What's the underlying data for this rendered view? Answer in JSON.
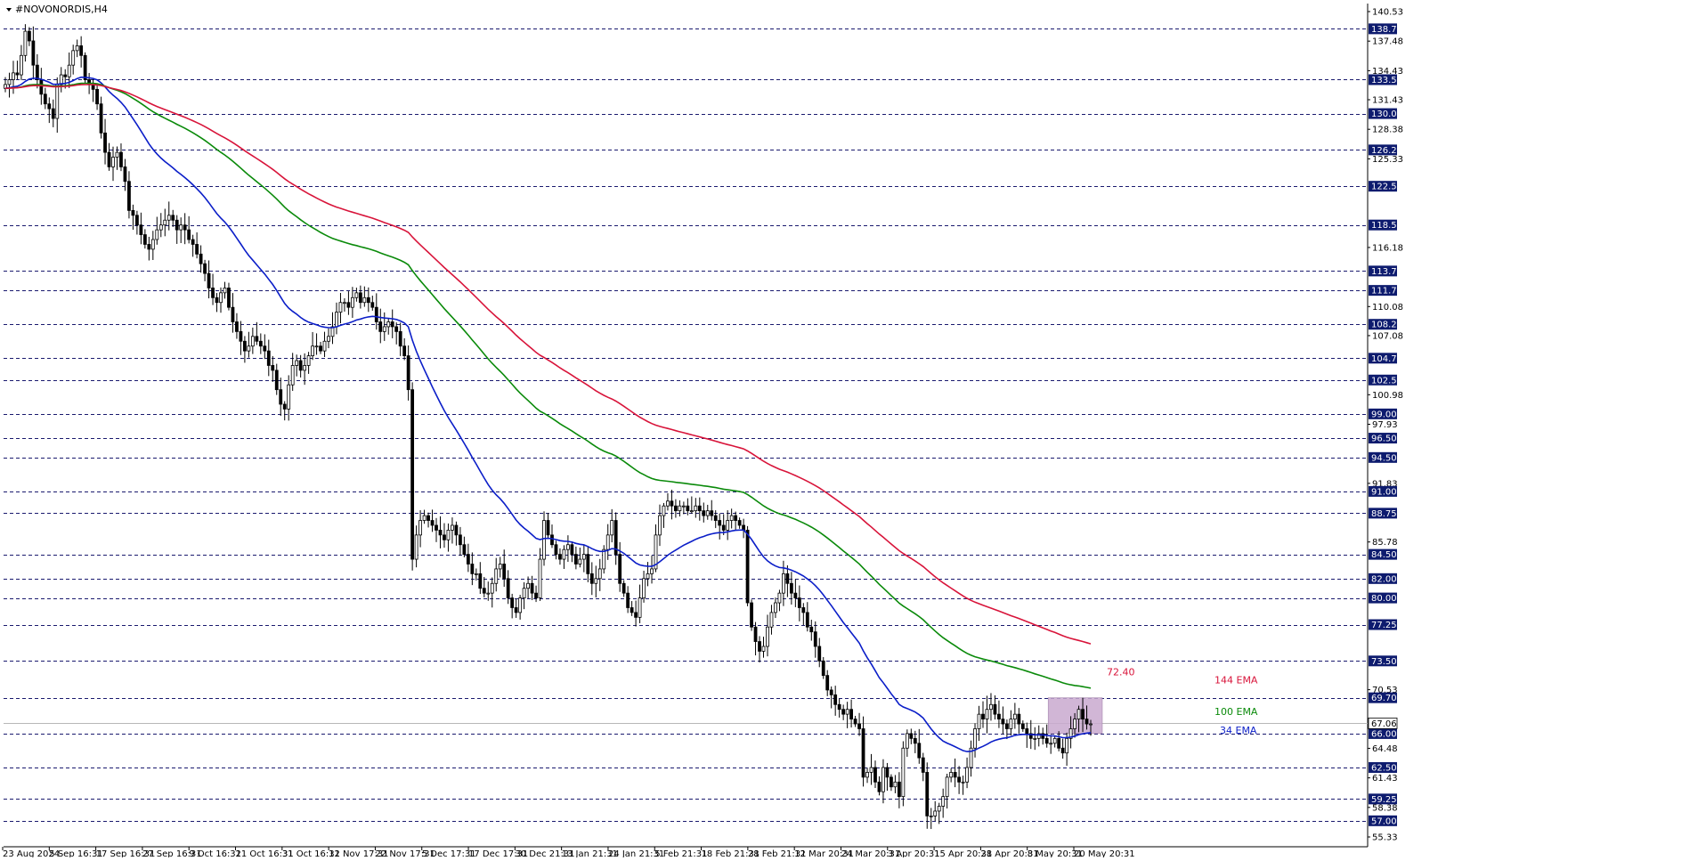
{
  "chart_title": "#NOVONORDIS,H4",
  "colors": {
    "background": "#ffffff",
    "candles": "#000000",
    "grid_level": "#1a1a6e",
    "badge_bg": "#0d1b6e",
    "ema34": "#0b1ec8",
    "ema100": "#0a8a0a",
    "ema144": "#d8143a",
    "zone_fill": "#c9a9cf"
  },
  "chart_data": {
    "type": "candlestick",
    "title": "#NOVONORDIS,H4",
    "xlabel": "",
    "ylabel": "",
    "ylim": [
      55.33,
      140.53
    ],
    "grid": "horizontal dashed lines at key price levels",
    "y_axis_labels": [
      "140.53",
      "137.48",
      "134.43",
      "131.43",
      "128.38",
      "125.33",
      "122.28",
      "119.23",
      "116.18",
      "113.13",
      "110.08",
      "107.08",
      "104.03",
      "100.98",
      "97.93",
      "94.88",
      "91.83",
      "88.78",
      "85.78",
      "82.73",
      "79.68",
      "76.63",
      "73.58",
      "70.53",
      "67.48",
      "64.48",
      "61.43",
      "58.38",
      "55.33"
    ],
    "price_levels": [
      138.75,
      133.5,
      130.0,
      126.25,
      122.5,
      118.5,
      113.75,
      111.75,
      108.25,
      104.75,
      102.5,
      99.0,
      96.5,
      94.5,
      91.0,
      88.75,
      84.5,
      82.0,
      80.0,
      77.25,
      73.5,
      69.7,
      66.0,
      62.5,
      59.25,
      57.0
    ],
    "current_price": 67.06,
    "x_labels": [
      "23 Aug 2024",
      "5 Sep 16:31",
      "17 Sep 16:31",
      "27 Sep 16:31",
      "9 Oct 16:31",
      "21 Oct 16:31",
      "31 Oct 16:31",
      "12 Nov 17:31",
      "22 Nov 17:31",
      "5 Dec 17:31",
      "17 Dec 17:31",
      "30 Dec 21:31",
      "13 Jan 21:31",
      "24 Jan 21:31",
      "5 Feb 21:31",
      "18 Feb 21:31",
      "28 Feb 21:31",
      "12 Mar 20:31",
      "24 Mar 20:31",
      "3 Apr 20:31",
      "15 Apr 20:31",
      "28 Apr 20:31",
      "8 May 20:31",
      "20 May 20:31"
    ],
    "closes": [
      133.0,
      133.5,
      134.2,
      134.0,
      136.0,
      138.5,
      137.5,
      135.0,
      133.5,
      132.0,
      131.0,
      130.5,
      129.5,
      133.0,
      134.0,
      133.8,
      135.0,
      136.5,
      137.0,
      136.0,
      133.5,
      133.0,
      132.5,
      131.0,
      128.0,
      126.0,
      124.5,
      125.5,
      126.0,
      124.5,
      123.0,
      120.0,
      119.5,
      118.5,
      117.5,
      116.5,
      116.0,
      117.0,
      118.0,
      118.5,
      119.0,
      119.5,
      119.0,
      118.0,
      118.5,
      118.0,
      117.0,
      116.5,
      115.5,
      114.5,
      113.5,
      112.0,
      111.0,
      110.5,
      111.5,
      112.0,
      110.0,
      108.5,
      107.5,
      106.5,
      105.5,
      106.0,
      107.0,
      106.5,
      106.0,
      105.5,
      104.0,
      103.5,
      101.5,
      100.0,
      99.5,
      102.0,
      104.0,
      104.5,
      103.5,
      104.0,
      105.0,
      106.0,
      106.0,
      105.5,
      106.5,
      107.0,
      108.0,
      109.5,
      110.5,
      110.5,
      110.0,
      111.0,
      111.5,
      110.5,
      111.0,
      110.5,
      110.0,
      108.5,
      107.5,
      108.0,
      108.5,
      108.0,
      107.5,
      106.0,
      105.0,
      101.5,
      84.0,
      86.5,
      88.0,
      88.5,
      88.0,
      87.5,
      87.0,
      86.5,
      86.0,
      87.0,
      87.5,
      86.5,
      85.5,
      84.5,
      83.5,
      82.5,
      82.5,
      81.0,
      80.5,
      80.5,
      81.5,
      83.0,
      83.5,
      82.0,
      80.0,
      79.0,
      78.5,
      80.0,
      81.0,
      81.5,
      80.5,
      80.0,
      84.0,
      88.0,
      86.5,
      85.5,
      84.5,
      84.0,
      85.0,
      85.5,
      84.5,
      83.5,
      84.0,
      84.5,
      82.5,
      81.5,
      82.0,
      83.0,
      85.0,
      86.5,
      88.0,
      84.5,
      81.5,
      80.5,
      79.0,
      78.5,
      78.0,
      80.0,
      82.0,
      82.5,
      83.0,
      86.5,
      88.5,
      89.5,
      90.0,
      89.5,
      89.0,
      89.5,
      89.5,
      89.0,
      89.0,
      89.5,
      89.0,
      88.5,
      89.0,
      88.5,
      88.0,
      87.5,
      87.0,
      88.0,
      88.5,
      88.0,
      87.5,
      87.0,
      79.5,
      77.0,
      75.5,
      74.5,
      75.0,
      77.0,
      78.5,
      79.5,
      80.5,
      82.5,
      81.5,
      80.5,
      80.0,
      79.0,
      78.5,
      77.0,
      76.5,
      75.0,
      73.5,
      72.0,
      70.5,
      70.0,
      69.0,
      68.5,
      68.0,
      68.5,
      67.5,
      67.0,
      66.5,
      61.5,
      62.0,
      62.5,
      61.0,
      60.0,
      62.5,
      61.5,
      60.5,
      61.0,
      59.5,
      64.5,
      66.0,
      65.5,
      65.0,
      63.5,
      62.0,
      57.5,
      57.5,
      58.0,
      58.5,
      59.5,
      61.5,
      62.0,
      61.5,
      61.0,
      61.0,
      62.5,
      64.5,
      66.5,
      68.0,
      67.5,
      68.5,
      69.0,
      68.0,
      67.5,
      67.0,
      66.5,
      67.5,
      68.0,
      67.0,
      66.5,
      66.0,
      65.5,
      65.5,
      66.0,
      65.5,
      65.0,
      65.0,
      65.5,
      64.5,
      64.0,
      65.5,
      66.5,
      67.5,
      68.5,
      67.5,
      67.0,
      67.0
    ],
    "series": [
      {
        "name": "34 EMA",
        "color": "#0b1ec8",
        "period": 34
      },
      {
        "name": "100 EMA",
        "color": "#0a8a0a",
        "period": 100
      },
      {
        "name": "144 EMA",
        "color": "#d8143a",
        "period": 144
      }
    ],
    "ema_seed": 133.0,
    "ema_start_value": 132.6,
    "ema144_last_value": 72.4,
    "annotations": {
      "ema144_value_label": "72.40",
      "ema144_label": "144 EMA",
      "ema100_label": "100 EMA",
      "ema34_label": "34 EMA"
    },
    "zone": {
      "price_top": 69.7,
      "price_bottom": 66.0,
      "from_index": 262,
      "to_index": 281
    }
  }
}
